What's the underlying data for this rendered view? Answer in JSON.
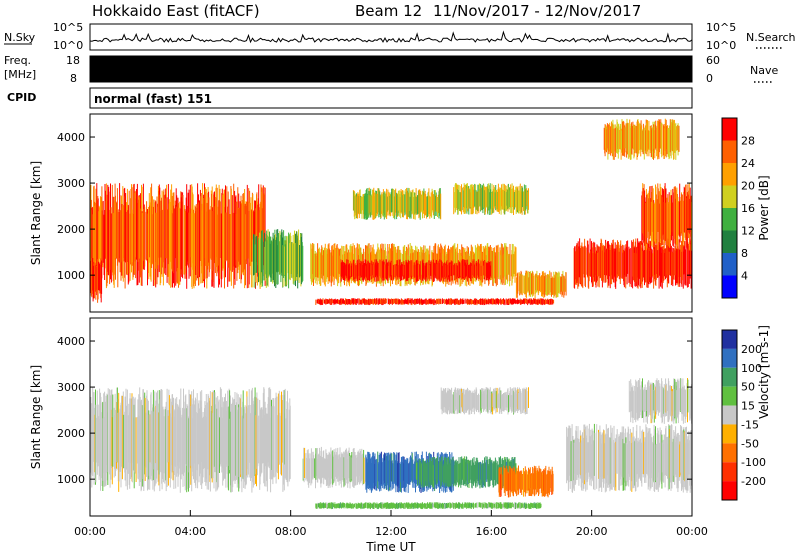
{
  "header": {
    "title": "Hokkaido East (fitACF)",
    "beam": "Beam 12",
    "date_range": "11/Nov/2017 - 12/Nov/2017"
  },
  "strip_labels": {
    "nsky": "N.Sky",
    "nsky_ticks": [
      "10^5",
      "10^0"
    ],
    "nsearch": "N.Search",
    "freq_line1": "Freq.",
    "freq_line2": "[MHz]",
    "freq_ticks": [
      "18",
      "8"
    ],
    "nave_ticks": [
      "60",
      "0"
    ],
    "nave": "Nave",
    "cpid": "CPID",
    "cpid_text": "normal (fast) 151"
  },
  "chart_data": [
    {
      "type": "heatmap",
      "panel": "power",
      "ylabel": "Slant Range [km]",
      "y_ticks": [
        1000,
        2000,
        3000,
        4000
      ],
      "ylim": [
        200,
        4500
      ],
      "colorbar_label": "Power [dB]",
      "colorbar_ticks": [
        4,
        8,
        12,
        16,
        20,
        24,
        28
      ],
      "colorbar_levels": [
        "#0000ff",
        "#2060c8",
        "#208040",
        "#40b040",
        "#d0d020",
        "#ffa000",
        "#ff6000",
        "#ff0000"
      ],
      "regions": [
        {
          "time_start": 0.0,
          "time_end": 7.0,
          "range_min": 700,
          "range_max": 3000,
          "power_db": 24
        },
        {
          "time_start": 0.0,
          "time_end": 0.5,
          "range_min": 400,
          "range_max": 1400,
          "power_db": 28
        },
        {
          "time_start": 6.5,
          "time_end": 8.5,
          "range_min": 700,
          "range_max": 2000,
          "power_db": 12
        },
        {
          "time_start": 8.8,
          "time_end": 17.0,
          "range_min": 750,
          "range_max": 1700,
          "power_db": 20
        },
        {
          "time_start": 10.0,
          "time_end": 16.0,
          "range_min": 850,
          "range_max": 1350,
          "power_db": 28
        },
        {
          "time_start": 9.0,
          "time_end": 18.5,
          "range_min": 350,
          "range_max": 500,
          "power_db": 28
        },
        {
          "time_start": 17.0,
          "time_end": 19.0,
          "range_min": 500,
          "range_max": 1100,
          "power_db": 20
        },
        {
          "time_start": 19.3,
          "time_end": 24.0,
          "range_min": 700,
          "range_max": 1800,
          "power_db": 28
        },
        {
          "time_start": 22.0,
          "time_end": 24.0,
          "range_min": 1500,
          "range_max": 3000,
          "power_db": 24
        },
        {
          "time_start": 10.5,
          "time_end": 14.0,
          "range_min": 2200,
          "range_max": 2900,
          "power_db": 16
        },
        {
          "time_start": 14.5,
          "time_end": 17.5,
          "range_min": 2300,
          "range_max": 3000,
          "power_db": 16
        },
        {
          "time_start": 20.5,
          "time_end": 23.5,
          "range_min": 3500,
          "range_max": 4400,
          "power_db": 20
        }
      ]
    },
    {
      "type": "heatmap",
      "panel": "velocity",
      "ylabel": "Slant Range [km]",
      "xlabel": "Time UT",
      "x_ticks": [
        "00:00",
        "04:00",
        "08:00",
        "12:00",
        "16:00",
        "20:00",
        "00:00"
      ],
      "y_ticks": [
        1000,
        2000,
        3000,
        4000
      ],
      "ylim": [
        200,
        4500
      ],
      "colorbar_label": "Velocity [m s-1]",
      "colorbar_ticks": [
        200,
        100,
        50,
        15,
        -15,
        -50,
        -100,
        -200
      ],
      "colorbar_levels": [
        "#2030a0",
        "#3070c0",
        "#40a060",
        "#60c040",
        "#c8c8c8",
        "#ffb000",
        "#ff7000",
        "#ff3000",
        "#ff0000"
      ],
      "regions": [
        {
          "time_start": 0.0,
          "time_end": 8.0,
          "range_min": 700,
          "range_max": 3000,
          "velocity": 0
        },
        {
          "time_start": 8.5,
          "time_end": 11.0,
          "range_min": 800,
          "range_max": 1700,
          "velocity": 0
        },
        {
          "time_start": 11.0,
          "time_end": 14.5,
          "range_min": 700,
          "range_max": 1600,
          "velocity": 100
        },
        {
          "time_start": 13.0,
          "time_end": 17.0,
          "range_min": 800,
          "range_max": 1500,
          "velocity": 50
        },
        {
          "time_start": 16.3,
          "time_end": 18.5,
          "range_min": 600,
          "range_max": 1300,
          "velocity": -50
        },
        {
          "time_start": 9.0,
          "time_end": 18.0,
          "range_min": 350,
          "range_max": 500,
          "velocity": 30
        },
        {
          "time_start": 19.0,
          "time_end": 24.0,
          "range_min": 700,
          "range_max": 2200,
          "velocity": 0
        },
        {
          "time_start": 21.5,
          "time_end": 24.0,
          "range_min": 2200,
          "range_max": 3200,
          "velocity": 0
        },
        {
          "time_start": 14.0,
          "time_end": 17.5,
          "range_min": 2400,
          "range_max": 3000,
          "velocity": 0
        }
      ]
    }
  ]
}
